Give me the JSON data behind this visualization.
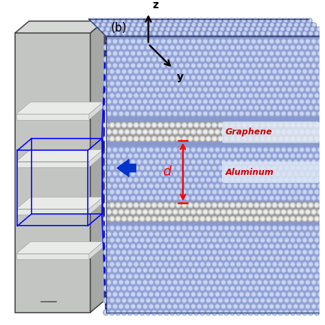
{
  "fig_width": 4.74,
  "fig_height": 4.74,
  "bg_color": "#ffffff",
  "label_b": "(b)",
  "label_graph": "Graphene",
  "label_alum": "Aluminum"
}
